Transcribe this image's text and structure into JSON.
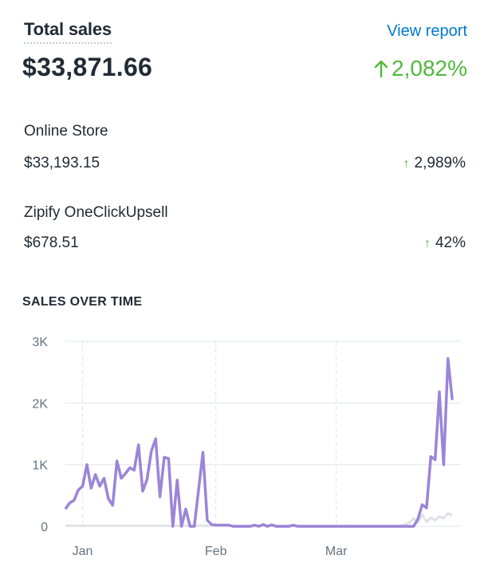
{
  "header": {
    "title": "Total sales",
    "view_report": "View report",
    "total": "$33,871.66",
    "change": "2,082%"
  },
  "breakdown": [
    {
      "label": "Online Store",
      "value": "$33,193.15",
      "change": "2,989%"
    },
    {
      "label": "Zipify OneClickUpsell",
      "value": "$678.51",
      "change": "42%"
    }
  ],
  "icons": {
    "up": "arrow-up-icon"
  },
  "colors": {
    "up": "#50b83c",
    "link": "#007ace",
    "series": "#9c84d8",
    "prior": "#dfe3e8"
  },
  "chart_data": {
    "type": "line",
    "title": "SALES OVER TIME",
    "xlabel": "",
    "ylabel": "",
    "ylim": [
      0,
      3000
    ],
    "y_ticks": [
      "0",
      "1K",
      "2K",
      "3K"
    ],
    "x_tick_labels": [
      "Jan",
      "Feb",
      "Mar"
    ],
    "x_range": [
      "2016-12-28",
      "2017-03-30"
    ],
    "x_ticks_at": [
      "2017-01-01",
      "2017-02-01",
      "2017-03-01"
    ],
    "grid": true,
    "series": [
      {
        "values": [
          [
            "2016-12-28",
            280
          ],
          [
            "2016-12-29",
            380
          ],
          [
            "2016-12-30",
            420
          ],
          [
            "2016-12-31",
            590
          ],
          [
            "2017-01-01",
            650
          ],
          [
            "2017-01-02",
            1000
          ],
          [
            "2017-01-03",
            620
          ],
          [
            "2017-01-04",
            840
          ],
          [
            "2017-01-05",
            650
          ],
          [
            "2017-01-06",
            780
          ],
          [
            "2017-01-07",
            450
          ],
          [
            "2017-01-08",
            340
          ],
          [
            "2017-01-09",
            1060
          ],
          [
            "2017-01-10",
            780
          ],
          [
            "2017-01-11",
            860
          ],
          [
            "2017-01-12",
            950
          ],
          [
            "2017-01-13",
            910
          ],
          [
            "2017-01-14",
            1320
          ],
          [
            "2017-01-15",
            570
          ],
          [
            "2017-01-16",
            760
          ],
          [
            "2017-01-17",
            1220
          ],
          [
            "2017-01-18",
            1420
          ],
          [
            "2017-01-19",
            480
          ],
          [
            "2017-01-20",
            1120
          ],
          [
            "2017-01-21",
            1100
          ],
          [
            "2017-01-22",
            0
          ],
          [
            "2017-01-23",
            750
          ],
          [
            "2017-01-24",
            0
          ],
          [
            "2017-01-25",
            280
          ],
          [
            "2017-01-26",
            0
          ],
          [
            "2017-01-27",
            0
          ],
          [
            "2017-01-28",
            600
          ],
          [
            "2017-01-29",
            1200
          ],
          [
            "2017-01-30",
            100
          ],
          [
            "2017-01-31",
            30
          ],
          [
            "2017-02-01",
            20
          ],
          [
            "2017-02-04",
            20
          ],
          [
            "2017-02-05",
            0
          ],
          [
            "2017-02-09",
            0
          ],
          [
            "2017-02-10",
            20
          ],
          [
            "2017-02-11",
            0
          ],
          [
            "2017-02-12",
            30
          ],
          [
            "2017-02-13",
            0
          ],
          [
            "2017-02-14",
            25
          ],
          [
            "2017-02-15",
            0
          ],
          [
            "2017-02-18",
            0
          ],
          [
            "2017-02-19",
            20
          ],
          [
            "2017-02-20",
            0
          ],
          [
            "2017-03-19",
            0
          ],
          [
            "2017-03-20",
            120
          ],
          [
            "2017-03-21",
            350
          ],
          [
            "2017-03-22",
            300
          ],
          [
            "2017-03-23",
            1130
          ],
          [
            "2017-03-24",
            1080
          ],
          [
            "2017-03-25",
            2180
          ],
          [
            "2017-03-26",
            1000
          ],
          [
            "2017-03-27",
            2720
          ],
          [
            "2017-03-28",
            2050
          ]
        ]
      },
      {
        "values": [
          [
            "2016-12-28",
            10
          ],
          [
            "2017-03-16",
            10
          ],
          [
            "2017-03-17",
            30
          ],
          [
            "2017-03-18",
            60
          ],
          [
            "2017-03-19",
            130
          ],
          [
            "2017-03-20",
            60
          ],
          [
            "2017-03-21",
            190
          ],
          [
            "2017-03-22",
            70
          ],
          [
            "2017-03-23",
            140
          ],
          [
            "2017-03-24",
            100
          ],
          [
            "2017-03-25",
            160
          ],
          [
            "2017-03-26",
            130
          ],
          [
            "2017-03-27",
            210
          ],
          [
            "2017-03-28",
            180
          ]
        ]
      }
    ]
  }
}
